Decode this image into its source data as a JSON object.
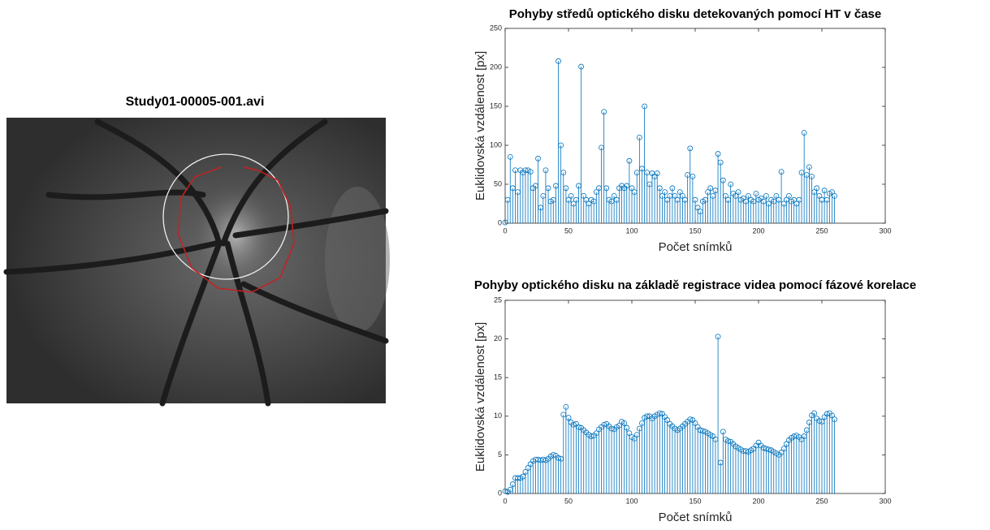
{
  "image": {
    "title": "Study01-00005-001.avi"
  },
  "chart_data": [
    {
      "type": "stem",
      "title": "Pohyby středů optického disku detekovaných pomocí HT v čase",
      "xlabel": "Počet snímků",
      "ylabel": "Euklidovská vzdálenost [px]",
      "xlim": [
        0,
        300
      ],
      "xticks": [
        0,
        50,
        100,
        150,
        200,
        250,
        300
      ],
      "ylim": [
        0,
        250
      ],
      "yticks": [
        0,
        50,
        100,
        150,
        200,
        250
      ],
      "color": "#0072bd",
      "x": [
        0,
        2,
        4,
        6,
        8,
        10,
        12,
        14,
        16,
        18,
        20,
        22,
        24,
        26,
        28,
        30,
        32,
        34,
        36,
        38,
        40,
        42,
        44,
        46,
        48,
        50,
        52,
        54,
        56,
        58,
        60,
        62,
        64,
        66,
        68,
        70,
        72,
        74,
        76,
        78,
        80,
        82,
        84,
        86,
        88,
        90,
        92,
        94,
        96,
        98,
        100,
        102,
        104,
        106,
        108,
        110,
        112,
        114,
        116,
        118,
        120,
        122,
        124,
        126,
        128,
        130,
        132,
        134,
        136,
        138,
        140,
        142,
        144,
        146,
        148,
        150,
        152,
        154,
        156,
        158,
        160,
        162,
        164,
        166,
        168,
        170,
        172,
        174,
        176,
        178,
        180,
        182,
        184,
        186,
        188,
        190,
        192,
        194,
        196,
        198,
        200,
        202,
        204,
        206,
        208,
        210,
        212,
        214,
        216,
        218,
        220,
        222,
        224,
        226,
        228,
        230,
        232,
        234,
        236,
        238,
        240,
        242,
        244,
        246,
        248,
        250,
        252,
        254,
        256,
        258,
        260
      ],
      "values": [
        1,
        30,
        85,
        45,
        68,
        40,
        68,
        65,
        68,
        68,
        66,
        45,
        48,
        83,
        20,
        35,
        68,
        45,
        28,
        30,
        48,
        208,
        100,
        65,
        45,
        30,
        35,
        25,
        30,
        48,
        201,
        35,
        30,
        25,
        30,
        28,
        40,
        45,
        97,
        143,
        45,
        30,
        28,
        35,
        30,
        45,
        48,
        45,
        48,
        80,
        45,
        40,
        65,
        110,
        70,
        150,
        65,
        50,
        64,
        60,
        64,
        45,
        35,
        40,
        30,
        35,
        45,
        35,
        30,
        40,
        35,
        30,
        62,
        96,
        60,
        30,
        20,
        15,
        28,
        30,
        40,
        45,
        35,
        42,
        89,
        78,
        55,
        35,
        30,
        50,
        38,
        35,
        40,
        30,
        32,
        28,
        35,
        30,
        28,
        38,
        30,
        32,
        28,
        35,
        25,
        30,
        28,
        35,
        30,
        66,
        25,
        30,
        35,
        28,
        30,
        25,
        30,
        65,
        116,
        62,
        72,
        60,
        40,
        45,
        35,
        30,
        42,
        30,
        38,
        40,
        35
      ]
    },
    {
      "type": "stem",
      "title": "Pohyby optického disku na základě registrace videa pomocí fázové korelace",
      "xlabel": "Počet snímků",
      "ylabel": "Euklidovská vzdálenost [px]",
      "xlim": [
        0,
        300
      ],
      "xticks": [
        0,
        50,
        100,
        150,
        200,
        250,
        300
      ],
      "ylim": [
        0,
        25
      ],
      "yticks": [
        0,
        5,
        10,
        15,
        20,
        25
      ],
      "color": "#0072bd",
      "x": [
        0,
        2,
        4,
        6,
        8,
        10,
        12,
        14,
        16,
        18,
        20,
        22,
        24,
        26,
        28,
        30,
        32,
        34,
        36,
        38,
        40,
        42,
        44,
        46,
        48,
        50,
        52,
        54,
        56,
        58,
        60,
        62,
        64,
        66,
        68,
        70,
        72,
        74,
        76,
        78,
        80,
        82,
        84,
        86,
        88,
        90,
        92,
        94,
        96,
        98,
        100,
        102,
        104,
        106,
        108,
        110,
        112,
        114,
        116,
        118,
        120,
        122,
        124,
        126,
        128,
        130,
        132,
        134,
        136,
        138,
        140,
        142,
        144,
        146,
        148,
        150,
        152,
        154,
        156,
        158,
        160,
        162,
        164,
        166,
        168,
        170,
        172,
        174,
        176,
        178,
        180,
        182,
        184,
        186,
        188,
        190,
        192,
        194,
        196,
        198,
        200,
        202,
        204,
        206,
        208,
        210,
        212,
        214,
        216,
        218,
        220,
        222,
        224,
        226,
        228,
        230,
        232,
        234,
        236,
        238,
        240,
        242,
        244,
        246,
        248,
        250,
        252,
        254,
        256,
        258,
        260
      ],
      "values": [
        0.3,
        0.2,
        0.5,
        1.2,
        2,
        2,
        2,
        2.2,
        2.8,
        3.3,
        3.8,
        4.2,
        4.4,
        4.4,
        4.3,
        4.4,
        4.3,
        4.5,
        4.8,
        5,
        4.9,
        4.6,
        4.5,
        10.2,
        11.2,
        9.8,
        9.2,
        8.9,
        9,
        8.6,
        8.5,
        8.2,
        7.9,
        7.6,
        7.4,
        7.5,
        7.8,
        8.3,
        8.6,
        8.9,
        9,
        8.7,
        8.4,
        8.3,
        8.6,
        8.8,
        9.3,
        9.1,
        8.5,
        7.8,
        7.3,
        7.1,
        7.6,
        8.4,
        9.1,
        9.8,
        10,
        10,
        9.7,
        10,
        10.2,
        10.4,
        10.3,
        9.9,
        9.5,
        9,
        8.7,
        8.4,
        8.2,
        8.4,
        8.7,
        9,
        9.3,
        9.6,
        9.5,
        9.1,
        8.6,
        8.2,
        8.1,
        8,
        7.8,
        7.6,
        7.4,
        7,
        20.3,
        4,
        8,
        7,
        6.8,
        6.7,
        6.4,
        6.1,
        5.9,
        5.7,
        5.5,
        5.5,
        5.4,
        5.6,
        5.8,
        6.2,
        6.6,
        6.2,
        5.9,
        5.8,
        5.7,
        5.6,
        5.4,
        5.2,
        5,
        5.3,
        5.8,
        6.4,
        6.9,
        7.2,
        7.4,
        7.5,
        7.3,
        7,
        7.4,
        8.2,
        9.2,
        10.1,
        10.4,
        9.7,
        9.4,
        9.3,
        9.9,
        10.3,
        10.4,
        10.1,
        9.6
      ]
    }
  ]
}
